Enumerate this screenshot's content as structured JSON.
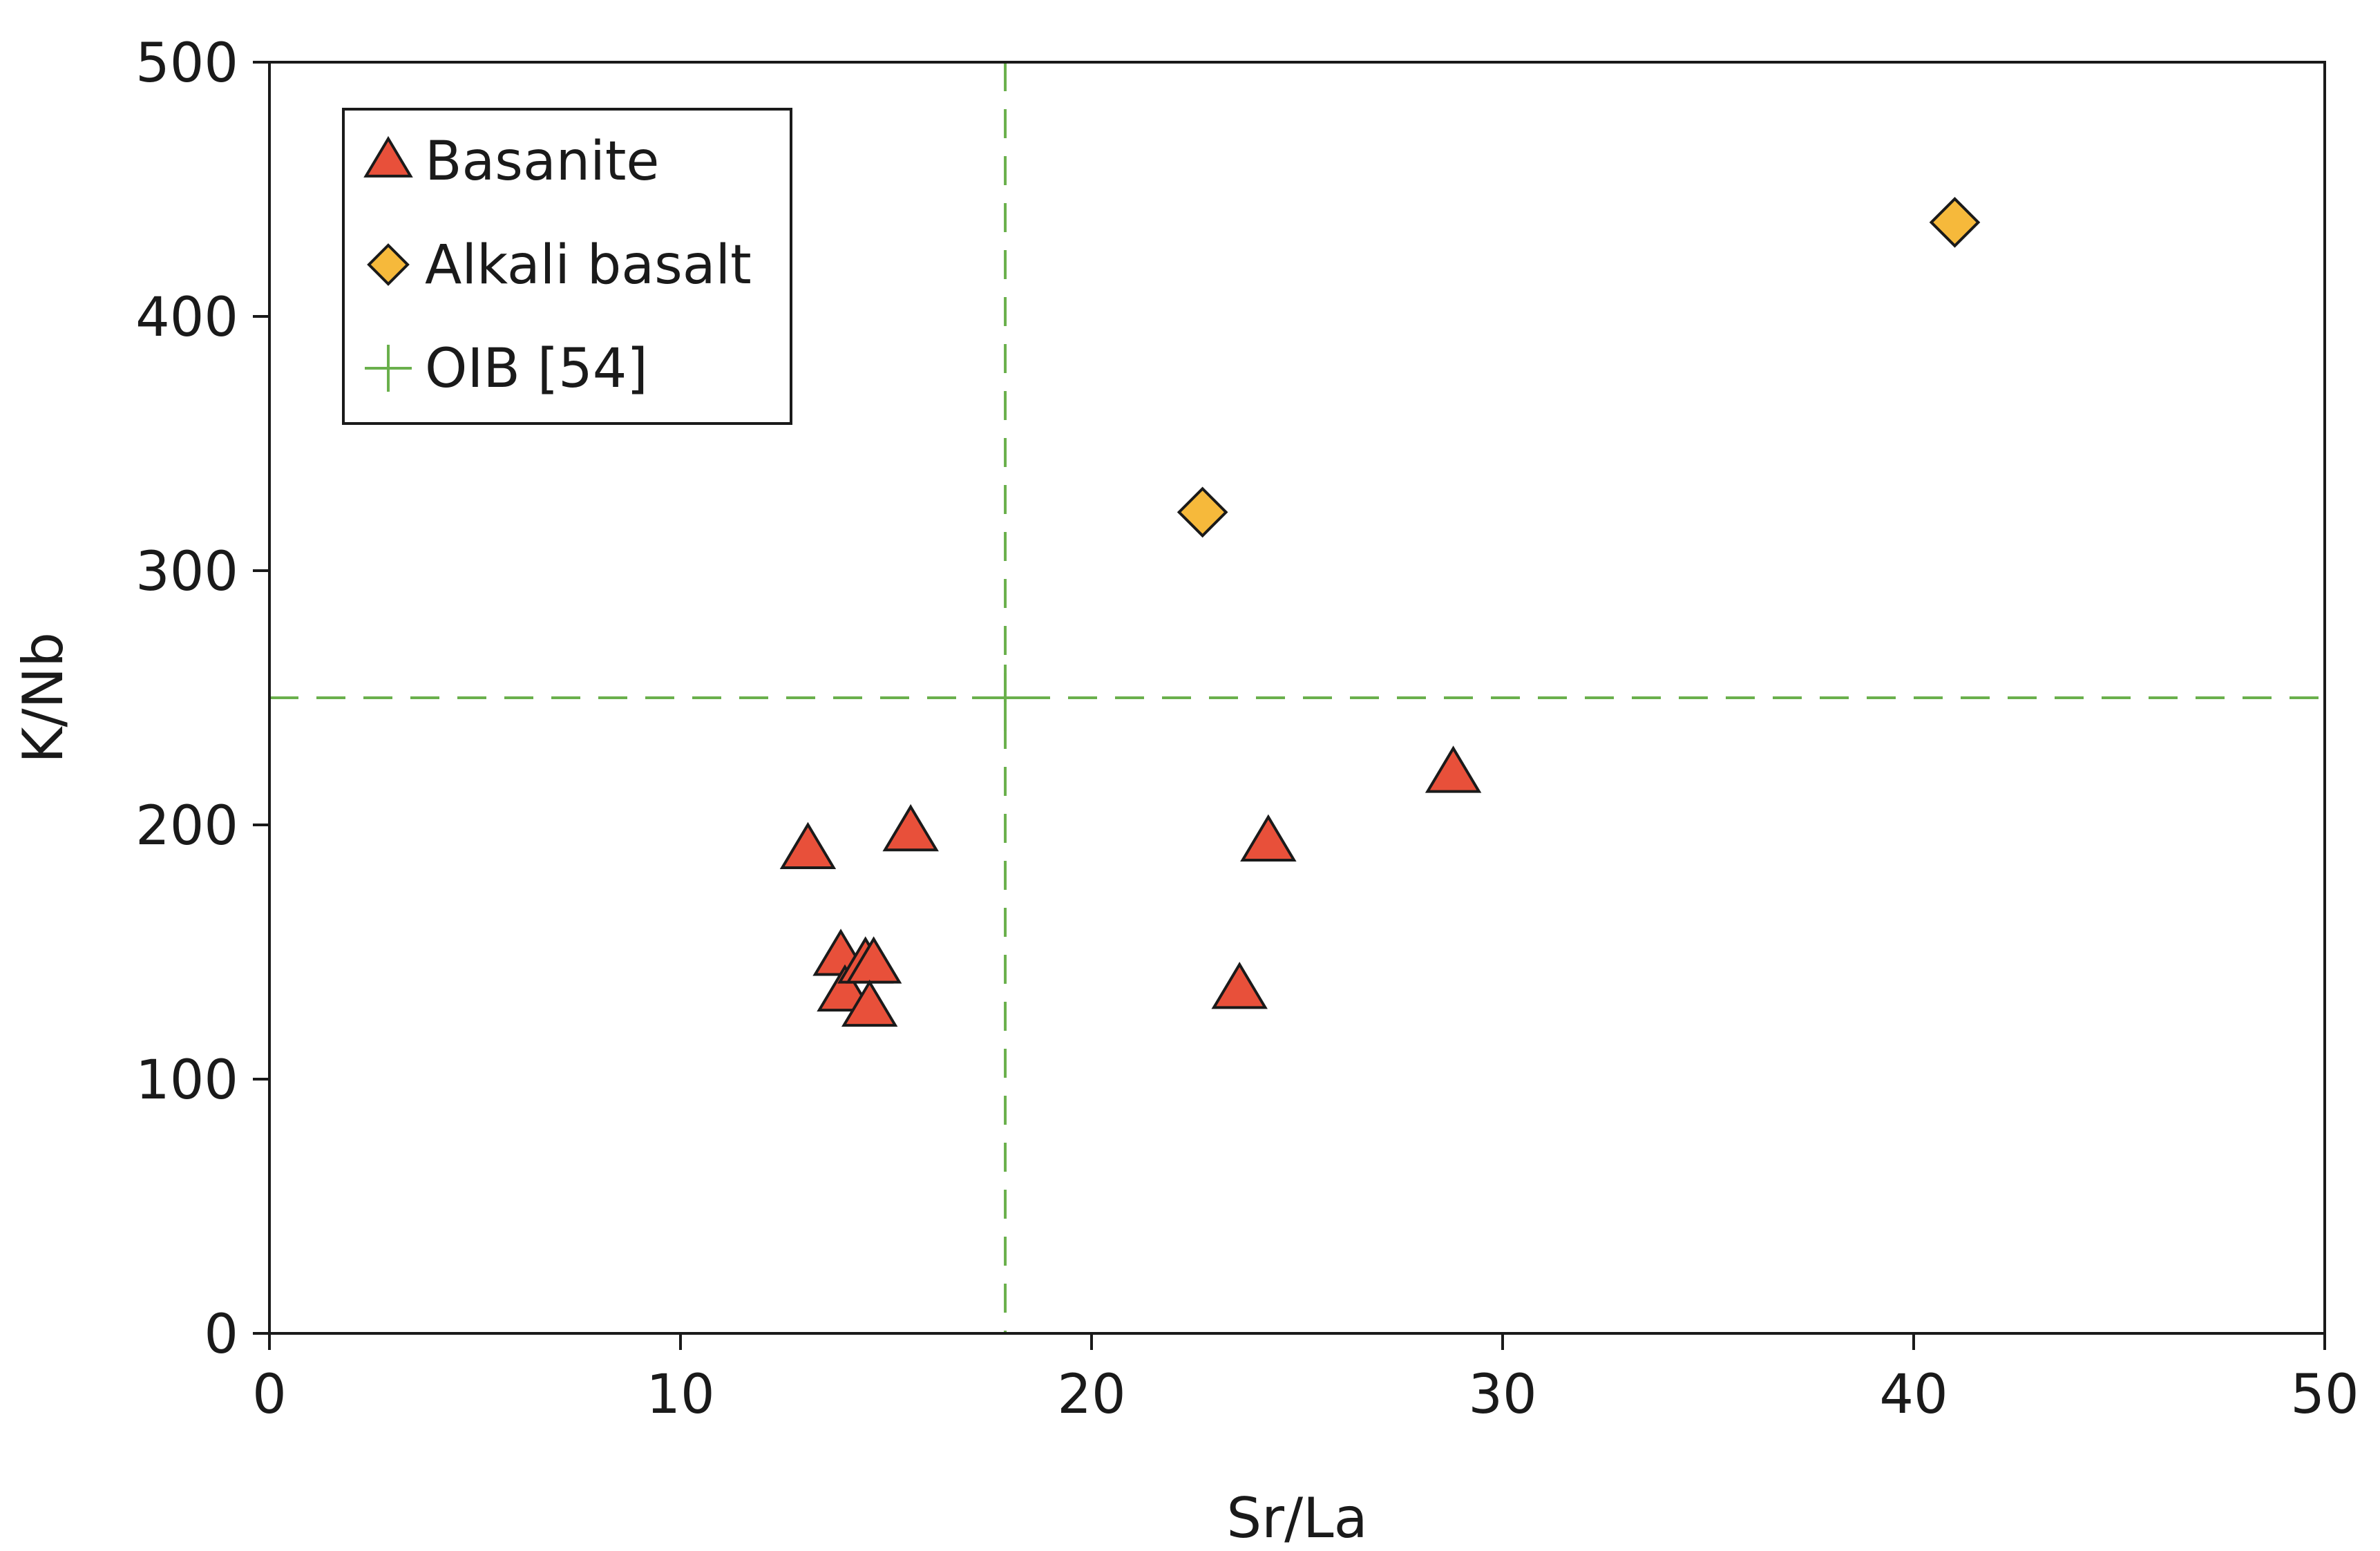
{
  "chart_data": {
    "type": "scatter",
    "title": "",
    "xlabel": "Sr/La",
    "ylabel": "K/Nb",
    "xlim": [
      0,
      50
    ],
    "ylim": [
      0,
      500
    ],
    "xticks": [
      "0",
      "10",
      "20",
      "30",
      "40",
      "50"
    ],
    "yticks": [
      "0",
      "100",
      "200",
      "300",
      "400",
      "500"
    ],
    "grid": false,
    "legend_position": "top-left",
    "series": [
      {
        "name": "Basanite",
        "marker": "triangle",
        "color": "#e8503a",
        "points": [
          {
            "x": 13.1,
            "y": 190
          },
          {
            "x": 15.6,
            "y": 197
          },
          {
            "x": 13.9,
            "y": 148
          },
          {
            "x": 14.0,
            "y": 134
          },
          {
            "x": 14.5,
            "y": 145
          },
          {
            "x": 14.7,
            "y": 145
          },
          {
            "x": 14.6,
            "y": 128
          },
          {
            "x": 24.3,
            "y": 193
          },
          {
            "x": 23.6,
            "y": 135
          },
          {
            "x": 28.8,
            "y": 220
          }
        ]
      },
      {
        "name": "Alkali basalt",
        "marker": "diamond",
        "color": "#f6b93b",
        "points": [
          {
            "x": 22.7,
            "y": 323
          },
          {
            "x": 41.0,
            "y": 437
          }
        ]
      },
      {
        "name": "OIB [54]",
        "marker": "cross",
        "color": "#6ab04c",
        "points": [
          {
            "x": 17.9,
            "y": 250
          }
        ]
      }
    ]
  }
}
